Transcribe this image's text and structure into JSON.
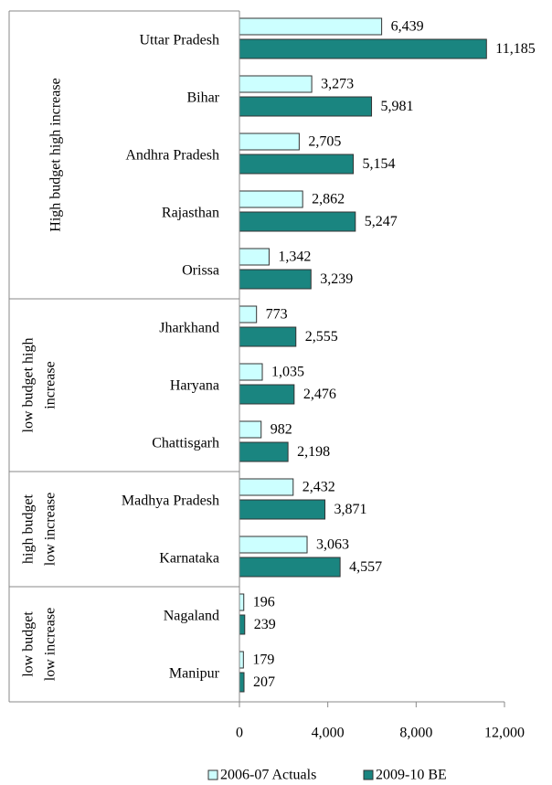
{
  "chart_data": {
    "type": "bar",
    "orientation": "horizontal",
    "groups": [
      {
        "label": [
          "High budget high increase"
        ],
        "categories": [
          "Uttar Pradesh",
          "Bihar",
          "Andhra Pradesh",
          "Rajasthan",
          "Orissa"
        ]
      },
      {
        "label": [
          "low budget high",
          "increase"
        ],
        "categories": [
          "Jharkhand",
          "Haryana",
          "Chattisgarh"
        ]
      },
      {
        "label": [
          "high budget",
          "low increase"
        ],
        "categories": [
          "Madhya Pradesh",
          "Karnataka"
        ]
      },
      {
        "label": [
          "low budget",
          "low increase"
        ],
        "categories": [
          "Nagaland",
          "Manipur"
        ]
      }
    ],
    "series": [
      {
        "name": "2006-07 Actuals",
        "color": "#ccffff",
        "values": [
          6439,
          3273,
          2705,
          2862,
          1342,
          773,
          1035,
          982,
          2432,
          3063,
          196,
          179
        ],
        "value_labels": [
          "6,439",
          "3,273",
          "2,705",
          "2,862",
          "1,342",
          "773",
          "1,035",
          "982",
          "2,432",
          "3,063",
          "196",
          "179"
        ]
      },
      {
        "name": "2009-10 BE",
        "color": "#1a8580",
        "values": [
          11185,
          5981,
          5154,
          5247,
          3239,
          2555,
          2476,
          2198,
          3871,
          4557,
          239,
          207
        ],
        "value_labels": [
          "11,185",
          "5,981",
          "5,154",
          "5,247",
          "3,239",
          "2,555",
          "2,476",
          "2,198",
          "3,871",
          "4,557",
          "239",
          "207"
        ]
      }
    ],
    "xlim": [
      0,
      12000
    ],
    "xticks": [
      0,
      {
        "value": 4000,
        "label": "4,000"
      },
      {
        "value": 8000,
        "label": "8,000"
      },
      {
        "value": 12000,
        "label": "12,000"
      }
    ],
    "legend": "bottom"
  }
}
